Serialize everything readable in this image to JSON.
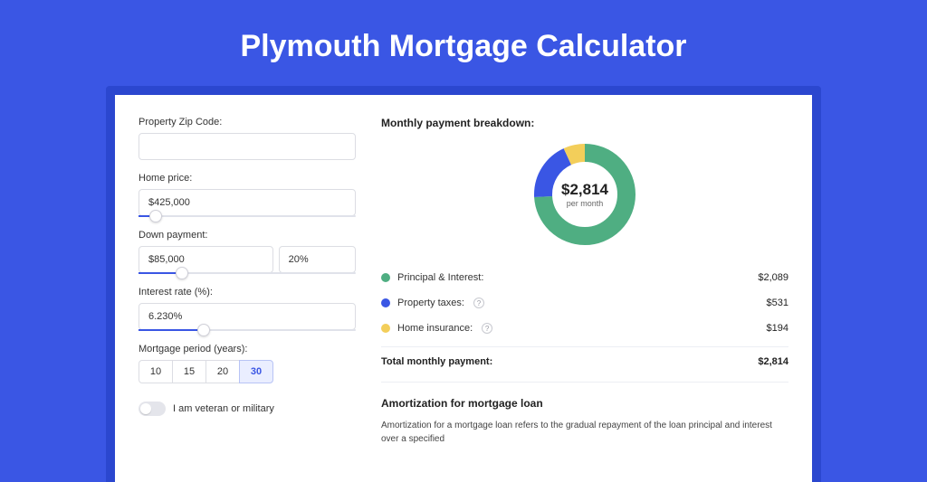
{
  "title": "Plymouth Mortgage Calculator",
  "colors": {
    "page_bg": "#3a56e4",
    "card_wrap_bg": "#2b47cf",
    "card_bg": "#ffffff",
    "principal": "#4fae82",
    "taxes": "#3a56e4",
    "insurance": "#f3ce5a",
    "text_dark": "#222222"
  },
  "form": {
    "zip_label": "Property Zip Code:",
    "zip_value": "",
    "price_label": "Home price:",
    "price_value": "$425,000",
    "price_slider_pct": 8,
    "down_label": "Down payment:",
    "down_value": "$85,000",
    "down_pct_value": "20%",
    "down_slider_pct": 20,
    "rate_label": "Interest rate (%):",
    "rate_value": "6.230%",
    "rate_slider_pct": 30,
    "period_label": "Mortgage period (years):",
    "periods": [
      "10",
      "15",
      "20",
      "30"
    ],
    "period_active": "30",
    "veteran_label": "I am veteran or military"
  },
  "breakdown": {
    "heading": "Monthly payment breakdown:",
    "center_value": "$2,814",
    "center_sub": "per month",
    "items": [
      {
        "label": "Principal & Interest:",
        "value": "$2,089",
        "color": "#4fae82",
        "help": false,
        "pct": 74
      },
      {
        "label": "Property taxes:",
        "value": "$531",
        "color": "#3a56e4",
        "help": true,
        "pct": 19
      },
      {
        "label": "Home insurance:",
        "value": "$194",
        "color": "#f3ce5a",
        "help": true,
        "pct": 7
      }
    ],
    "total_label": "Total monthly payment:",
    "total_value": "$2,814"
  },
  "amort": {
    "heading": "Amortization for mortgage loan",
    "text": "Amortization for a mortgage loan refers to the gradual repayment of the loan principal and interest over a specified"
  }
}
